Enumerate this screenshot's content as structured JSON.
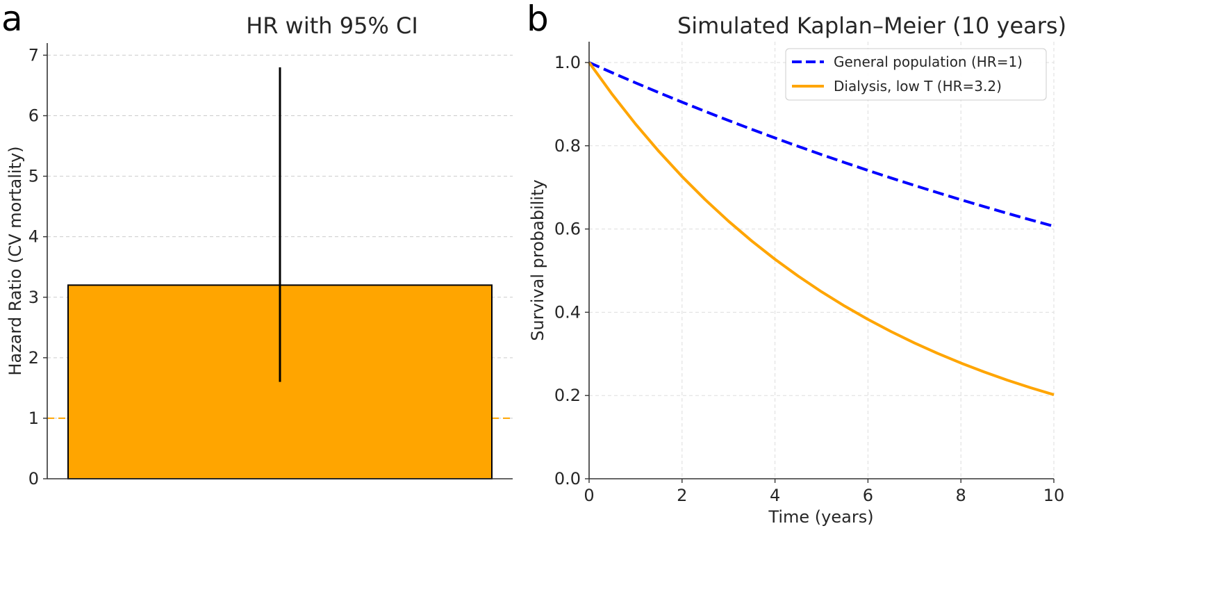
{
  "panels": {
    "a_letter": "a",
    "b_letter": "b"
  },
  "chart_data": [
    {
      "type": "bar",
      "title": "HR with 95% CI",
      "xlabel": "",
      "ylabel": "Hazard Ratio (CV mortality)",
      "categories": [
        ""
      ],
      "values": [
        3.2
      ],
      "ci_lower": [
        1.6
      ],
      "ci_upper": [
        6.8
      ],
      "reference_line": 1,
      "ylim": [
        0,
        7.2
      ],
      "yticks": [
        0,
        1,
        2,
        3,
        4,
        5,
        6,
        7
      ],
      "grid": true,
      "colors": {
        "bar": "#FFA500",
        "edge": "#000000",
        "errorbar": "#000000",
        "reference": "#FFA500"
      }
    },
    {
      "type": "line",
      "title": "Simulated Kaplan–Meier (10 years)",
      "xlabel": "Time (years)",
      "ylabel": "Survival probability",
      "xlim": [
        0,
        10
      ],
      "ylim": [
        0,
        1.05
      ],
      "xticks": [
        0,
        2,
        4,
        6,
        8,
        10
      ],
      "yticks": [
        0.0,
        0.2,
        0.4,
        0.6,
        0.8,
        1.0
      ],
      "grid": true,
      "legend_position": "top-right",
      "x": [
        0,
        0.5,
        1,
        1.5,
        2,
        2.5,
        3,
        3.5,
        4,
        4.5,
        5,
        5.5,
        6,
        6.5,
        7,
        7.5,
        8,
        8.5,
        9,
        9.5,
        10
      ],
      "series": [
        {
          "name": "General population (HR=1)",
          "style": "dashed",
          "color": "#0000FF",
          "values": [
            1.0,
            0.9753,
            0.9512,
            0.9277,
            0.9048,
            0.8825,
            0.8607,
            0.8395,
            0.8187,
            0.7985,
            0.7788,
            0.7596,
            0.7408,
            0.7225,
            0.7047,
            0.6873,
            0.6703,
            0.6538,
            0.6376,
            0.6219,
            0.6065
          ]
        },
        {
          "name": "Dialysis, low T (HR=3.2)",
          "style": "solid",
          "color": "#FFA500",
          "values": [
            1.0,
            0.9231,
            0.8521,
            0.7866,
            0.7261,
            0.6703,
            0.6188,
            0.5712,
            0.5273,
            0.4868,
            0.4493,
            0.4148,
            0.3829,
            0.3535,
            0.3263,
            0.3012,
            0.278,
            0.2567,
            0.2369,
            0.2187,
            0.2019
          ]
        }
      ]
    }
  ]
}
